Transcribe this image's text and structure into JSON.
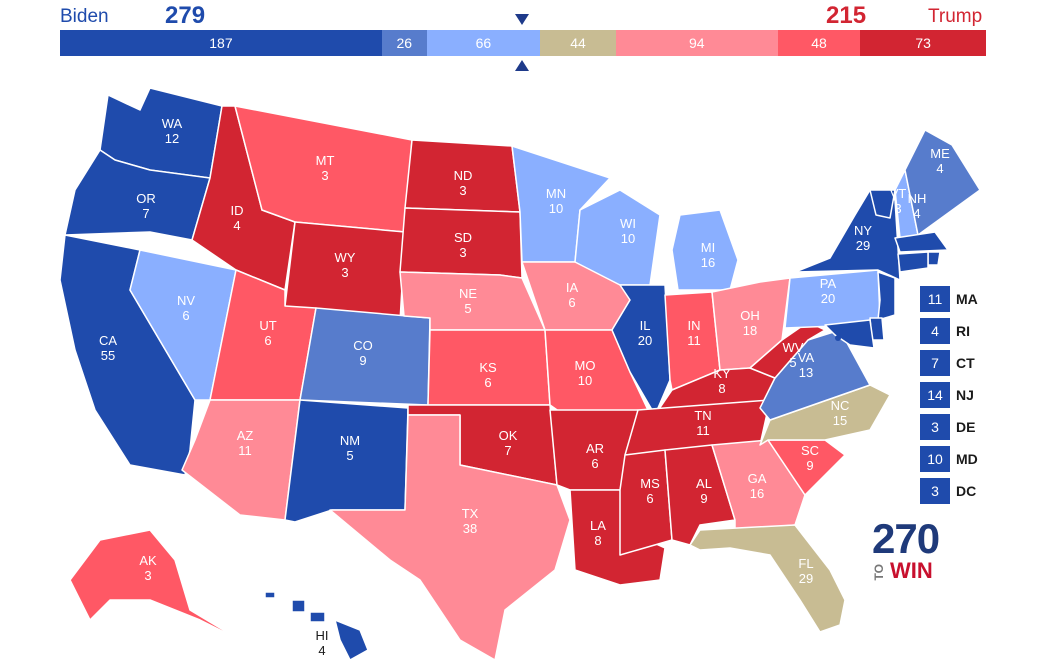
{
  "header": {
    "left_name": "Biden",
    "left_total": "279",
    "right_name": "Trump",
    "right_total": "215"
  },
  "bar": [
    {
      "value": 187,
      "label": "187",
      "color": "#1f4bac"
    },
    {
      "value": 26,
      "label": "26",
      "color": "#577ccc"
    },
    {
      "value": 66,
      "label": "66",
      "color": "#8aafff"
    },
    {
      "value": 44,
      "label": "44",
      "color": "#c8bc93"
    },
    {
      "value": 94,
      "label": "94",
      "color": "#ff8a96"
    },
    {
      "value": 48,
      "label": "48",
      "color": "#ff5865"
    },
    {
      "value": 73,
      "label": "73",
      "color": "#d22532"
    }
  ],
  "colors": {
    "safe_d": "#1f4bac",
    "likely_d": "#577ccc",
    "lean_d": "#8aafff",
    "tossup": "#c8bc93",
    "lean_r": "#ff8a96",
    "likely_r": "#ff5865",
    "safe_r": "#d22532"
  },
  "states": [
    {
      "abbr": "WA",
      "ev": "12",
      "rating": "safe_d"
    },
    {
      "abbr": "OR",
      "ev": "7",
      "rating": "safe_d"
    },
    {
      "abbr": "CA",
      "ev": "55",
      "rating": "safe_d"
    },
    {
      "abbr": "NV",
      "ev": "6",
      "rating": "lean_d"
    },
    {
      "abbr": "ID",
      "ev": "4",
      "rating": "safe_r"
    },
    {
      "abbr": "MT",
      "ev": "3",
      "rating": "likely_r"
    },
    {
      "abbr": "WY",
      "ev": "3",
      "rating": "safe_r"
    },
    {
      "abbr": "UT",
      "ev": "6",
      "rating": "likely_r"
    },
    {
      "abbr": "AZ",
      "ev": "11",
      "rating": "lean_r"
    },
    {
      "abbr": "CO",
      "ev": "9",
      "rating": "likely_d"
    },
    {
      "abbr": "NM",
      "ev": "5",
      "rating": "safe_d"
    },
    {
      "abbr": "ND",
      "ev": "3",
      "rating": "safe_r"
    },
    {
      "abbr": "SD",
      "ev": "3",
      "rating": "safe_r"
    },
    {
      "abbr": "NE",
      "ev": "5",
      "rating": "lean_r"
    },
    {
      "abbr": "KS",
      "ev": "6",
      "rating": "likely_r"
    },
    {
      "abbr": "OK",
      "ev": "7",
      "rating": "safe_r"
    },
    {
      "abbr": "TX",
      "ev": "38",
      "rating": "lean_r"
    },
    {
      "abbr": "MN",
      "ev": "10",
      "rating": "lean_d"
    },
    {
      "abbr": "IA",
      "ev": "6",
      "rating": "lean_r"
    },
    {
      "abbr": "MO",
      "ev": "10",
      "rating": "likely_r"
    },
    {
      "abbr": "AR",
      "ev": "6",
      "rating": "safe_r"
    },
    {
      "abbr": "LA",
      "ev": "8",
      "rating": "safe_r"
    },
    {
      "abbr": "WI",
      "ev": "10",
      "rating": "lean_d"
    },
    {
      "abbr": "IL",
      "ev": "20",
      "rating": "safe_d"
    },
    {
      "abbr": "MI",
      "ev": "16",
      "rating": "lean_d"
    },
    {
      "abbr": "IN",
      "ev": "11",
      "rating": "likely_r"
    },
    {
      "abbr": "OH",
      "ev": "18",
      "rating": "lean_r"
    },
    {
      "abbr": "KY",
      "ev": "8",
      "rating": "safe_r"
    },
    {
      "abbr": "TN",
      "ev": "11",
      "rating": "safe_r"
    },
    {
      "abbr": "MS",
      "ev": "6",
      "rating": "safe_r"
    },
    {
      "abbr": "AL",
      "ev": "9",
      "rating": "safe_r"
    },
    {
      "abbr": "GA",
      "ev": "16",
      "rating": "lean_r"
    },
    {
      "abbr": "FL",
      "ev": "29",
      "rating": "tossup"
    },
    {
      "abbr": "SC",
      "ev": "9",
      "rating": "likely_r"
    },
    {
      "abbr": "NC",
      "ev": "15",
      "rating": "tossup"
    },
    {
      "abbr": "VA",
      "ev": "13",
      "rating": "likely_d"
    },
    {
      "abbr": "WV",
      "ev": "5",
      "rating": "safe_r"
    },
    {
      "abbr": "PA",
      "ev": "20",
      "rating": "lean_d"
    },
    {
      "abbr": "NY",
      "ev": "29",
      "rating": "safe_d"
    },
    {
      "abbr": "VT",
      "ev": "3",
      "rating": "safe_d"
    },
    {
      "abbr": "NH",
      "ev": "4",
      "rating": "lean_d"
    },
    {
      "abbr": "ME",
      "ev": "4",
      "rating": "likely_d"
    },
    {
      "abbr": "AK",
      "ev": "3",
      "rating": "likely_r"
    },
    {
      "abbr": "HI",
      "ev": "4",
      "rating": "safe_d"
    }
  ],
  "small_states": [
    {
      "abbr": "MA",
      "ev": "11"
    },
    {
      "abbr": "RI",
      "ev": "4"
    },
    {
      "abbr": "CT",
      "ev": "7"
    },
    {
      "abbr": "NJ",
      "ev": "14"
    },
    {
      "abbr": "DE",
      "ev": "3"
    },
    {
      "abbr": "MD",
      "ev": "10"
    },
    {
      "abbr": "DC",
      "ev": "3"
    }
  ],
  "logo": {
    "number": "270",
    "to": "TO",
    "win": "WIN"
  }
}
